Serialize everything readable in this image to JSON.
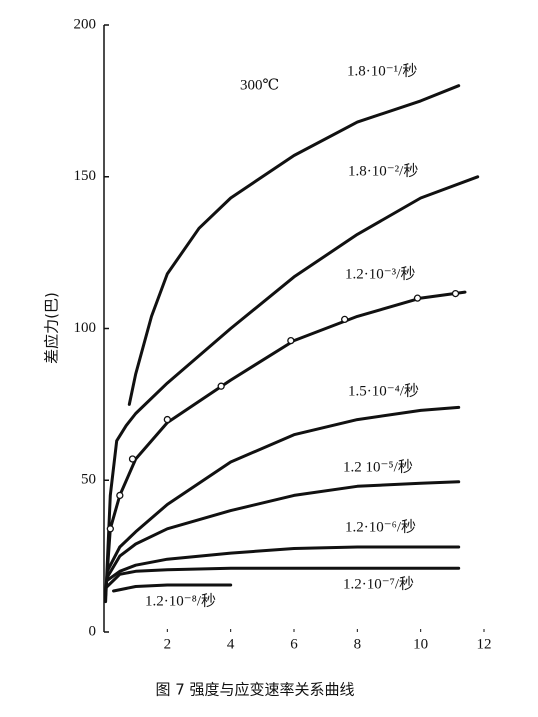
{
  "chart_data": {
    "type": "line",
    "ylabel": "差应力(巴)",
    "caption": "图 7   强度与应变速率关系曲线",
    "annotation": "300℃",
    "xlim": [
      0,
      12
    ],
    "ylim": [
      0,
      200
    ],
    "xticks": [
      2,
      4,
      6,
      8,
      10,
      12
    ],
    "yticks": [
      0,
      50,
      100,
      150,
      200
    ],
    "color": "#111111",
    "series": [
      {
        "name": "1.8·10⁻¹/秒",
        "x": [
          0.8,
          1.0,
          1.5,
          2,
          3,
          4,
          6,
          8,
          10,
          11.2
        ],
        "values": [
          75,
          85,
          104,
          118,
          133,
          143,
          157,
          168,
          175,
          180
        ]
      },
      {
        "name": "1.8·10⁻²/秒",
        "x": [
          0.05,
          0.2,
          0.4,
          0.7,
          1,
          2,
          4,
          6,
          8,
          10,
          11.8
        ],
        "values": [
          10,
          45,
          63,
          68,
          72,
          82,
          100,
          117,
          131,
          143,
          150
        ]
      },
      {
        "name": "1.2·10⁻³/秒",
        "x": [
          0.05,
          0.2,
          0.5,
          1,
          2,
          4,
          6,
          8,
          10,
          11.4
        ],
        "values": [
          12,
          34,
          45,
          57,
          69,
          83,
          96,
          104,
          110,
          112
        ]
      },
      {
        "name": "1.5·10⁻⁴/秒",
        "x": [
          0.1,
          0.5,
          1,
          2,
          4,
          6,
          8,
          10,
          11.2
        ],
        "values": [
          20,
          28,
          33,
          42,
          56,
          65,
          70,
          73,
          74
        ]
      },
      {
        "name": "1.2 10⁻⁵/秒",
        "x": [
          0.1,
          0.5,
          1,
          2,
          4,
          6,
          8,
          10,
          11.2
        ],
        "values": [
          18,
          25,
          29,
          34,
          40,
          45,
          48,
          49,
          49.5
        ]
      },
      {
        "name": "1.2·10⁻⁶/秒",
        "x": [
          0.1,
          0.5,
          1,
          2,
          4,
          6,
          8,
          11.2
        ],
        "values": [
          17,
          20,
          22,
          24,
          26,
          27.5,
          28,
          28
        ]
      },
      {
        "name": "1.2·10⁻⁷/秒",
        "x": [
          0.1,
          0.5,
          1,
          2,
          4,
          8,
          11.2
        ],
        "values": [
          15,
          19,
          20,
          20.5,
          21,
          21,
          21
        ]
      },
      {
        "name": "1.2·10⁻⁸/秒",
        "x": [
          0.3,
          1,
          2,
          4
        ],
        "values": [
          13.5,
          15,
          15.5,
          15.5
        ]
      }
    ],
    "points": {
      "x": [
        0.2,
        0.5,
        0.9,
        2,
        3.7,
        5.9,
        7.6,
        9.9,
        11.1
      ],
      "values": [
        34,
        45,
        57,
        70,
        81,
        96,
        103,
        110,
        111.5
      ]
    }
  }
}
